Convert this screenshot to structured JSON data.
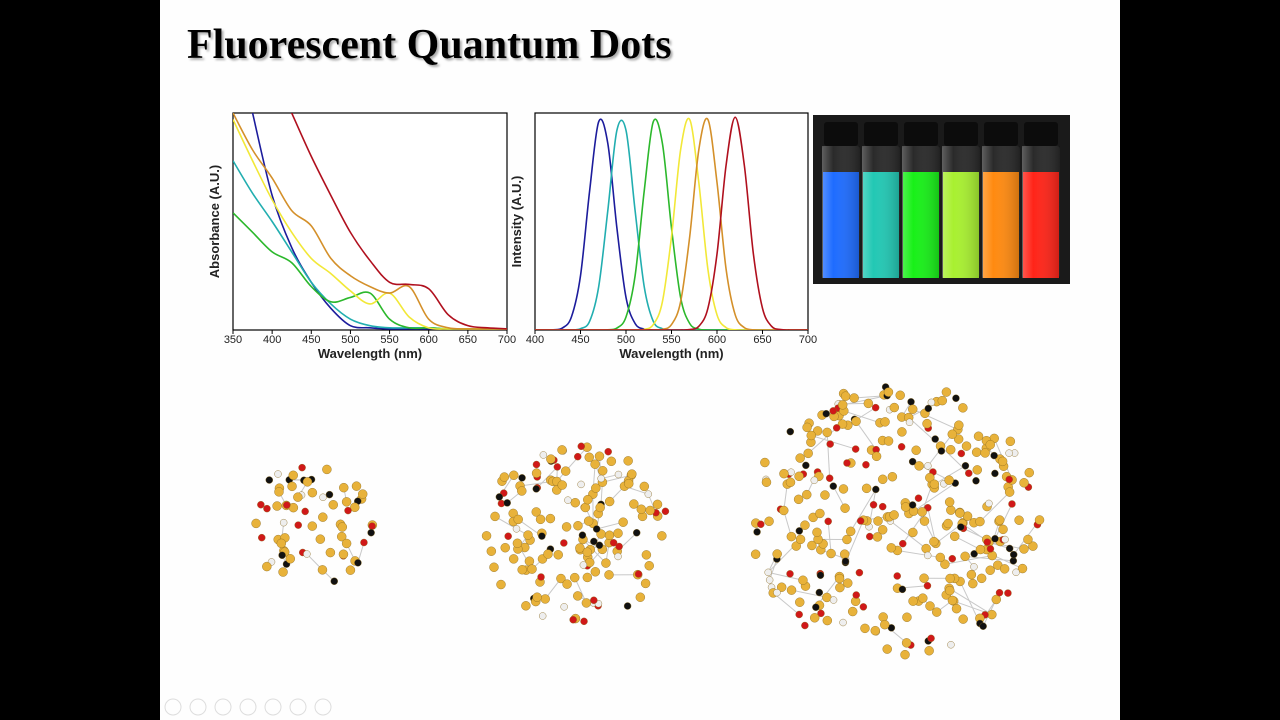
{
  "title": "Fluorescent Quantum Dots",
  "chart_data": [
    {
      "type": "line",
      "xlabel": "Wavelength (nm)",
      "ylabel": "Absorbance (A.U.)",
      "x": [
        350,
        375,
        400,
        425,
        450,
        475,
        500,
        525,
        550,
        575,
        600,
        625,
        650,
        675,
        700
      ],
      "xlim": [
        350,
        700
      ],
      "xticks": [
        350,
        400,
        450,
        500,
        550,
        600,
        650,
        700
      ],
      "ylim": [
        0,
        1
      ],
      "series": [
        {
          "color": "#1c1c9c",
          "values": [
            null,
            1.0,
            0.62,
            0.38,
            0.22,
            0.1,
            0.02,
            0.01,
            0.005,
            0.005,
            0.005,
            0.005,
            0.005,
            0.005,
            0.005
          ]
        },
        {
          "color": "#22aeb0",
          "values": [
            0.78,
            0.63,
            0.5,
            0.36,
            0.22,
            0.12,
            0.05,
            0.02,
            0.01,
            0.01,
            0.01,
            0.005,
            0.005,
            0.005,
            0.005
          ]
        },
        {
          "color": "#2cb82c",
          "values": [
            0.54,
            0.45,
            0.36,
            0.31,
            0.2,
            0.13,
            0.15,
            0.17,
            0.05,
            0.01,
            0.01,
            0.005,
            0.005,
            0.005,
            0.005
          ]
        },
        {
          "color": "#f2e838",
          "values": [
            0.97,
            0.78,
            0.6,
            0.45,
            0.33,
            0.26,
            0.18,
            0.12,
            0.17,
            0.06,
            0.01,
            0.005,
            0.005,
            0.005,
            0.005
          ]
        },
        {
          "color": "#d4902a",
          "values": [
            1.0,
            0.83,
            0.7,
            0.55,
            0.48,
            0.33,
            0.25,
            0.2,
            0.17,
            0.2,
            0.05,
            0.01,
            0.005,
            0.005,
            0.005
          ]
        },
        {
          "color": "#b0101e",
          "values": [
            null,
            null,
            null,
            1.0,
            0.8,
            0.62,
            0.45,
            0.32,
            0.22,
            0.21,
            0.19,
            0.07,
            0.02,
            0.01,
            0.005
          ]
        }
      ]
    },
    {
      "type": "line",
      "xlabel": "Wavelength (nm)",
      "ylabel": "Intensity (A.U.)",
      "x": [
        400,
        410,
        420,
        430,
        440,
        450,
        460,
        470,
        480,
        490,
        500,
        510,
        520,
        530,
        540,
        550,
        560,
        570,
        580,
        590,
        600,
        610,
        620,
        630,
        640,
        650,
        660,
        670,
        680,
        690,
        700
      ],
      "xlim": [
        400,
        700
      ],
      "xticks": [
        400,
        450,
        500,
        550,
        600,
        650,
        700
      ],
      "ylim": [
        0,
        1
      ],
      "series": [
        {
          "color": "#1c1c9c",
          "values": [
            0,
            0,
            0.001,
            0.009,
            0.06,
            0.25,
            0.64,
            0.96,
            0.86,
            0.47,
            0.15,
            0.03,
            0.004,
            0,
            0,
            0,
            0,
            0,
            0,
            0,
            0,
            0,
            0,
            0,
            0,
            0,
            0,
            0,
            0,
            0,
            0
          ]
        },
        {
          "color": "#22aeb0",
          "values": [
            0,
            0,
            0,
            0,
            0,
            0.006,
            0.04,
            0.2,
            0.55,
            0.92,
            0.92,
            0.55,
            0.2,
            0.04,
            0.006,
            0,
            0,
            0,
            0,
            0,
            0,
            0,
            0,
            0,
            0,
            0,
            0,
            0,
            0,
            0,
            0
          ]
        },
        {
          "color": "#2cb82c",
          "values": [
            0,
            0,
            0,
            0,
            0,
            0,
            0,
            0,
            0.001,
            0.009,
            0.06,
            0.25,
            0.64,
            0.96,
            0.86,
            0.47,
            0.15,
            0.03,
            0.004,
            0,
            0,
            0,
            0,
            0,
            0,
            0,
            0,
            0,
            0,
            0,
            0
          ]
        },
        {
          "color": "#f2e838",
          "values": [
            0,
            0,
            0,
            0,
            0,
            0,
            0,
            0,
            0,
            0,
            0,
            0,
            0.003,
            0.025,
            0.13,
            0.43,
            0.83,
            0.97,
            0.68,
            0.28,
            0.07,
            0.011,
            0.001,
            0,
            0,
            0,
            0,
            0,
            0,
            0,
            0
          ]
        },
        {
          "color": "#d4902a",
          "values": [
            0,
            0,
            0,
            0,
            0,
            0,
            0,
            0,
            0,
            0,
            0,
            0,
            0,
            0,
            0.003,
            0.025,
            0.13,
            0.43,
            0.83,
            0.97,
            0.68,
            0.28,
            0.07,
            0.011,
            0.001,
            0,
            0,
            0,
            0,
            0,
            0
          ]
        },
        {
          "color": "#b0101e",
          "values": [
            0,
            0,
            0,
            0,
            0,
            0,
            0,
            0,
            0,
            0,
            0,
            0,
            0,
            0,
            0,
            0,
            0,
            0.002,
            0.017,
            0.1,
            0.35,
            0.76,
            0.98,
            0.76,
            0.35,
            0.1,
            0.017,
            0.002,
            0,
            0,
            0
          ]
        }
      ]
    }
  ]
}
